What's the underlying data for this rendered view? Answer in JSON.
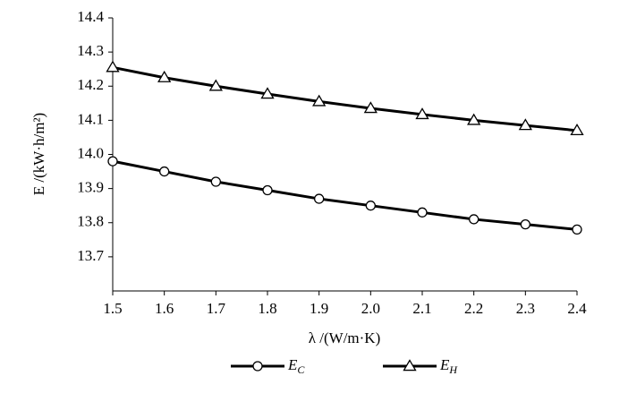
{
  "chart_data": {
    "type": "line",
    "x": [
      1.5,
      1.6,
      1.7,
      1.8,
      1.9,
      2.0,
      2.1,
      2.2,
      2.3,
      2.4
    ],
    "series": [
      {
        "name": "EC",
        "color": "#000000",
        "marker": "circle",
        "values": [
          13.98,
          13.95,
          13.92,
          13.895,
          13.87,
          13.85,
          13.83,
          13.81,
          13.795,
          13.78
        ]
      },
      {
        "name": "EH",
        "color": "#000000",
        "marker": "triangle",
        "values": [
          14.255,
          14.225,
          14.2,
          14.177,
          14.155,
          14.135,
          14.117,
          14.1,
          14.085,
          14.07
        ]
      }
    ],
    "xlim": [
      1.5,
      2.4
    ],
    "xticks": [
      1.5,
      1.6,
      1.7,
      1.8,
      1.9,
      {
        "value": 2,
        "label": "2.0"
      },
      2.1,
      2.2,
      2.3,
      2.4
    ],
    "ylim": [
      13.6,
      14.4
    ],
    "yticks": [
      13.7,
      13.8,
      13.9,
      {
        "value": 14,
        "label": "14.0"
      },
      14.1,
      14.2,
      14.3,
      14.4
    ],
    "xlabel": "λ /(W/m·K)",
    "ylabel": "E /(kW·h/m²)",
    "grid": false
  }
}
